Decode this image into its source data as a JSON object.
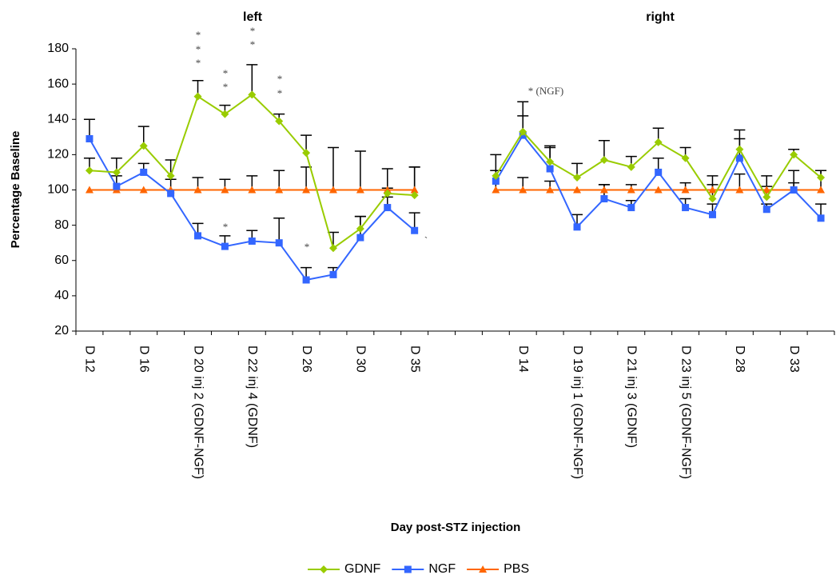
{
  "chart_data": {
    "type": "line",
    "subtitles": [
      "left",
      "right"
    ],
    "x_label": "Day post-STZ injection",
    "y_label": "Percentage Baseline",
    "categories": [
      "D 12",
      null,
      "D 16",
      null,
      "D 20 inj 2 (GDNF-NGF)",
      null,
      "D 22 inj 4 (GDNF)",
      null,
      "D 26",
      null,
      "D 30",
      null,
      "D 35",
      null,
      null,
      null,
      "D 14",
      null,
      "D 19 inj 1 (GDNF-NGF)",
      null,
      "D 21 inj 3 (GDNF)",
      null,
      "D 23 inj 5 (GDNF-NGF)",
      null,
      "D 28",
      null,
      "D 33",
      null
    ],
    "series": [
      {
        "name": "GDNF",
        "color": "#99cc00",
        "marker": "diamond",
        "values": [
          111,
          110,
          125,
          108,
          153,
          143,
          154,
          139,
          121,
          67,
          78,
          98,
          97,
          null,
          null,
          108,
          133,
          116,
          107,
          117,
          113,
          127,
          118,
          95,
          123,
          96,
          120,
          107
        ],
        "errors": [
          7,
          8,
          11,
          9,
          9,
          5,
          17,
          4,
          10,
          9,
          7,
          3,
          16,
          null,
          null,
          3,
          17,
          9,
          8,
          11,
          6,
          8,
          6,
          8,
          11,
          6,
          3,
          4
        ]
      },
      {
        "name": "NGF",
        "color": "#3366ff",
        "marker": "square",
        "values": [
          129,
          102,
          110,
          98,
          74,
          68,
          71,
          70,
          49,
          52,
          73,
          90,
          77,
          null,
          null,
          105,
          131,
          112,
          79,
          95,
          90,
          110,
          90,
          86,
          118,
          89,
          100,
          84
        ],
        "errors": [
          11,
          6,
          5,
          8,
          7,
          6,
          6,
          14,
          7,
          4,
          12,
          6,
          10,
          null,
          null,
          6,
          11,
          12,
          7,
          8,
          4,
          8,
          5,
          6,
          11,
          3,
          11,
          8
        ]
      },
      {
        "name": "PBS",
        "color": "#ff6600",
        "marker": "triangle",
        "values": [
          100,
          100,
          100,
          100,
          100,
          100,
          100,
          100,
          100,
          100,
          100,
          100,
          100,
          null,
          null,
          100,
          100,
          100,
          100,
          100,
          100,
          100,
          100,
          100,
          100,
          100,
          100,
          100
        ],
        "errors": [
          null,
          null,
          null,
          null,
          7,
          6,
          8,
          11,
          13,
          24,
          22,
          12,
          13,
          null,
          null,
          20,
          7,
          5,
          null,
          3,
          3,
          null,
          4,
          8,
          9,
          8,
          4,
          11
        ]
      }
    ],
    "annotations": [
      "*",
      "*",
      "*",
      "*",
      "*",
      "*",
      "*",
      "*",
      "*",
      "*",
      "*",
      "* (NGF)",
      "`"
    ],
    "ylim": [
      20,
      180
    ],
    "yticks": [
      20,
      40,
      60,
      80,
      100,
      120,
      140,
      160,
      180
    ],
    "grid": false,
    "legend": "bottom"
  }
}
